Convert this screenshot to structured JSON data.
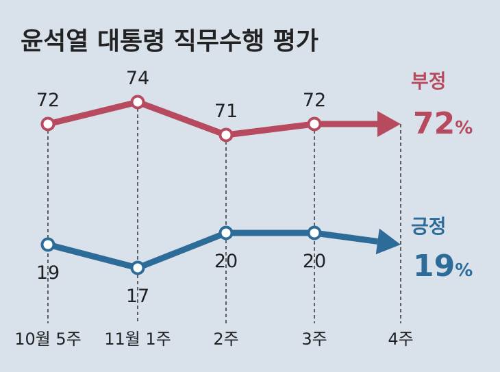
{
  "chart_data": {
    "type": "line",
    "title": "윤석열 대통령 직무수행 평가",
    "categories": [
      "10월 5주",
      "11월 1주",
      "2주",
      "3주",
      "4주"
    ],
    "series": [
      {
        "name": "부정",
        "values": [
          72,
          74,
          71,
          72,
          72
        ],
        "color": "#b84a5f",
        "latest_label": "72",
        "unit": "%"
      },
      {
        "name": "긍정",
        "values": [
          19,
          17,
          20,
          20,
          19
        ],
        "color": "#2d6b98",
        "latest_label": "19",
        "unit": "%"
      }
    ],
    "grid": false,
    "legend": "right"
  }
}
